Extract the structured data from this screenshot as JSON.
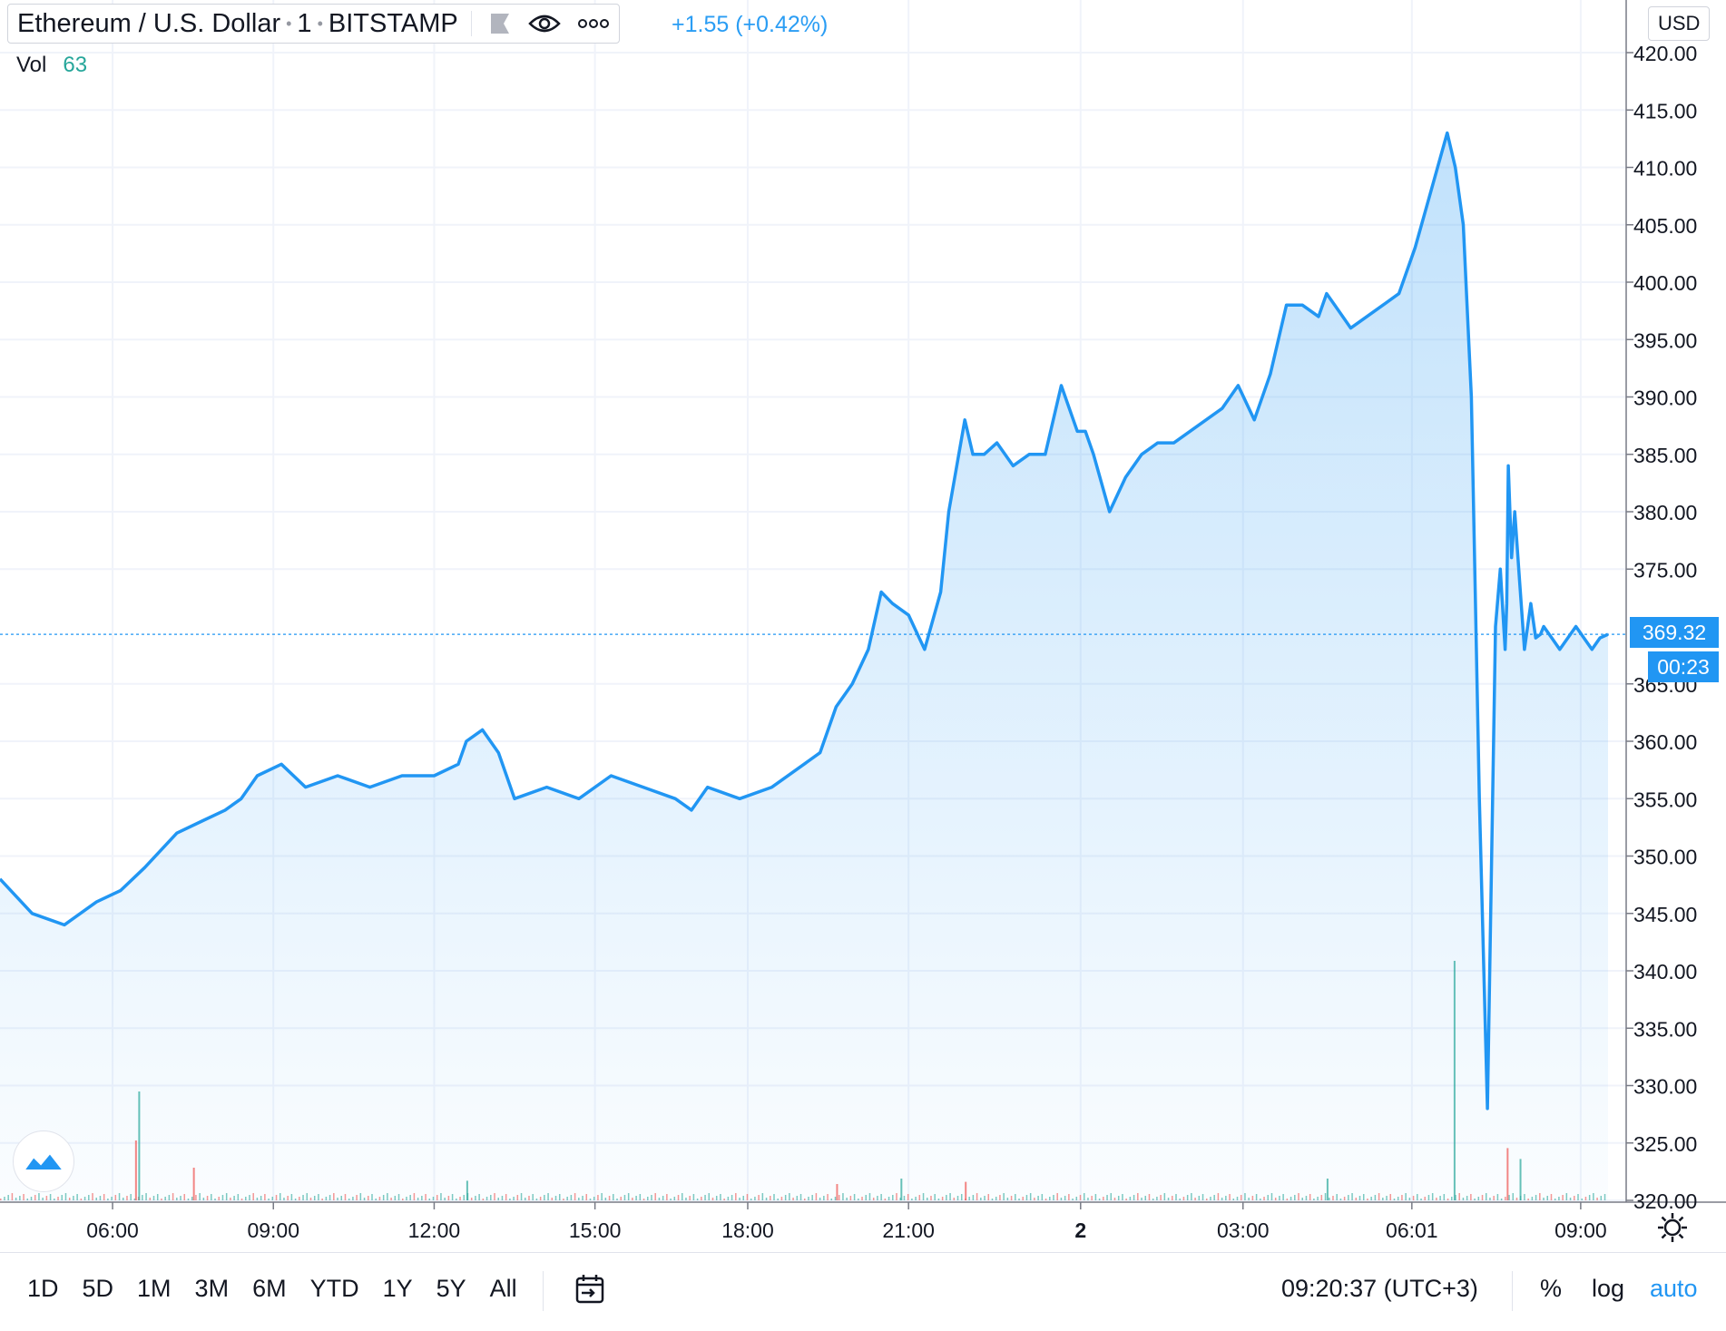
{
  "header": {
    "symbol": "Ethereum / U.S. Dollar",
    "interval": "1",
    "exchange": "BITSTAMP",
    "change": "+1.55 (+0.42%)",
    "vol_label": "Vol",
    "vol_value": "63",
    "currency": "USD"
  },
  "price_axis": {
    "ticks": [
      "420.00",
      "415.00",
      "410.00",
      "405.00",
      "400.00",
      "395.00",
      "390.00",
      "385.00",
      "380.00",
      "375.00",
      "365.00",
      "360.00",
      "355.00",
      "350.00",
      "345.00",
      "340.00",
      "335.00",
      "330.00",
      "325.00",
      "320.00"
    ],
    "last_price": "369.32",
    "countdown": "00:23"
  },
  "toolbar": {
    "ranges": [
      "1D",
      "5D",
      "1M",
      "3M",
      "6M",
      "YTD",
      "1Y",
      "5Y",
      "All"
    ],
    "time": "09:20:37 (UTC+3)",
    "percent": "%",
    "log": "log",
    "auto": "auto"
  },
  "colors": {
    "line": "#2196f3",
    "up": "#26a69a",
    "down": "#ef5350",
    "accent": "#2196f3"
  },
  "chart_data": {
    "type": "area",
    "ylim": [
      320,
      420
    ],
    "xlim": [
      0,
      1
    ],
    "x_ticks": [
      {
        "label": "06:00",
        "x": 0.07
      },
      {
        "label": "09:00",
        "x": 0.17
      },
      {
        "label": "12:00",
        "x": 0.27
      },
      {
        "label": "15:00",
        "x": 0.37
      },
      {
        "label": "18:00",
        "x": 0.465
      },
      {
        "label": "21:00",
        "x": 0.565
      },
      {
        "label": "2",
        "x": 0.672
      },
      {
        "label": "03:00",
        "x": 0.773
      },
      {
        "label": "06:01",
        "x": 0.878
      },
      {
        "label": "09:00",
        "x": 0.983
      }
    ],
    "x": [
      0,
      0.02,
      0.04,
      0.06,
      0.075,
      0.09,
      0.11,
      0.125,
      0.14,
      0.15,
      0.16,
      0.175,
      0.19,
      0.21,
      0.23,
      0.25,
      0.27,
      0.285,
      0.29,
      0.3,
      0.31,
      0.315,
      0.32,
      0.34,
      0.36,
      0.38,
      0.4,
      0.42,
      0.43,
      0.44,
      0.46,
      0.48,
      0.5,
      0.51,
      0.52,
      0.53,
      0.54,
      0.548,
      0.555,
      0.565,
      0.575,
      0.585,
      0.59,
      0.6,
      0.605,
      0.612,
      0.62,
      0.63,
      0.64,
      0.65,
      0.66,
      0.67,
      0.675,
      0.68,
      0.69,
      0.7,
      0.71,
      0.72,
      0.73,
      0.74,
      0.75,
      0.76,
      0.77,
      0.78,
      0.79,
      0.8,
      0.81,
      0.82,
      0.825,
      0.83,
      0.84,
      0.85,
      0.86,
      0.87,
      0.88,
      0.89,
      0.9,
      0.905,
      0.91,
      0.915,
      0.92,
      0.925,
      0.93,
      0.933,
      0.936,
      0.937,
      0.938,
      0.939,
      0.94,
      0.942,
      0.945,
      0.948,
      0.952,
      0.955,
      0.958,
      0.96,
      0.965,
      0.97,
      0.975,
      0.98,
      0.985,
      0.99,
      0.995,
      1.0
    ],
    "y": [
      348,
      345,
      344,
      346,
      347,
      349,
      352,
      353,
      354,
      355,
      357,
      358,
      356,
      357,
      356,
      357,
      357,
      358,
      360,
      361,
      359,
      357,
      355,
      356,
      355,
      357,
      356,
      355,
      354,
      356,
      355,
      356,
      358,
      359,
      363,
      365,
      368,
      373,
      372,
      371,
      368,
      373,
      380,
      388,
      385,
      385,
      386,
      384,
      385,
      385,
      391,
      387,
      387,
      385,
      380,
      383,
      385,
      386,
      386,
      387,
      388,
      389,
      391,
      388,
      392,
      398,
      398,
      397,
      399,
      398,
      396,
      397,
      398,
      399,
      403,
      408,
      413,
      410,
      405,
      390,
      355,
      328,
      370,
      375,
      368,
      372,
      384,
      380,
      376,
      380,
      374,
      368,
      372,
      369,
      369.32,
      370,
      369,
      368,
      369,
      370,
      369,
      368,
      369,
      369.32
    ],
    "volume": {
      "max_label": "",
      "spikes": [
        {
          "x": 0.086,
          "v": 1.0
        },
        {
          "x": 0.084,
          "v": 0.55
        },
        {
          "x": 0.904,
          "v": 2.2
        },
        {
          "x": 0.937,
          "v": 0.48
        },
        {
          "x": 0.945,
          "v": 0.38
        },
        {
          "x": 0.12,
          "v": 0.3
        },
        {
          "x": 0.29,
          "v": 0.18
        },
        {
          "x": 0.52,
          "v": 0.15
        },
        {
          "x": 0.56,
          "v": 0.2
        },
        {
          "x": 0.6,
          "v": 0.17
        },
        {
          "x": 0.825,
          "v": 0.2
        }
      ]
    }
  }
}
